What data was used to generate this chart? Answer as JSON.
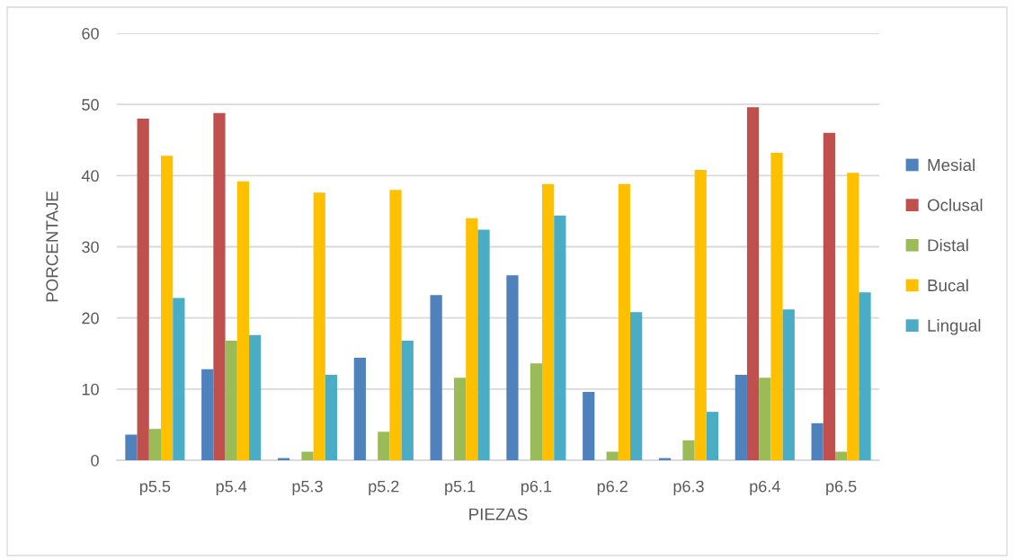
{
  "chart_data": {
    "type": "bar",
    "xlabel": "PIEZAS",
    "ylabel": "PORCENTAJE",
    "categories": [
      "p5.5",
      "p5.4",
      "p5.3",
      "p5.2",
      "p5.1",
      "p6.1",
      "p6.2",
      "p6.3",
      "p6.4",
      "p6.5"
    ],
    "series": [
      {
        "name": "Mesial",
        "color": "#4f81bd",
        "values": [
          3.6,
          12.8,
          0.3,
          14.4,
          23.2,
          26.0,
          9.6,
          0.3,
          12.0,
          5.2
        ]
      },
      {
        "name": "Oclusal",
        "color": "#c0504d",
        "values": [
          48.0,
          48.8,
          0,
          0,
          0,
          0,
          0,
          0,
          49.6,
          46.0
        ]
      },
      {
        "name": "Distal",
        "color": "#9bbb59",
        "values": [
          4.4,
          16.8,
          1.2,
          4.0,
          11.6,
          13.6,
          1.2,
          2.8,
          11.6,
          1.2
        ]
      },
      {
        "name": "Bucal",
        "color": "#ffc000",
        "values": [
          42.8,
          39.2,
          37.6,
          38.0,
          34.0,
          38.8,
          38.8,
          40.8,
          43.2,
          40.4
        ]
      },
      {
        "name": "Lingual",
        "color": "#4bacc6",
        "values": [
          22.8,
          17.6,
          12.0,
          16.8,
          32.4,
          34.4,
          20.8,
          6.8,
          21.2,
          23.6
        ]
      }
    ],
    "ylim": [
      0,
      60
    ],
    "yticks": [
      0,
      10,
      20,
      30,
      40,
      50,
      60
    ],
    "grid": "y",
    "legend": "right"
  }
}
